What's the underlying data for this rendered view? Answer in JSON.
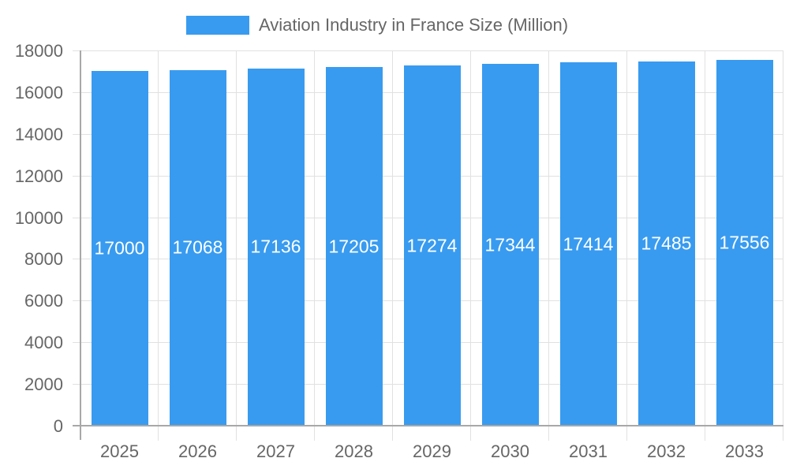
{
  "chart_data": {
    "type": "bar",
    "title": "",
    "legend": [
      {
        "label": "Aviation Industry in France Size (Million)",
        "color": "#389BF0"
      }
    ],
    "legend_position": "top",
    "categories": [
      "2025",
      "2026",
      "2027",
      "2028",
      "2029",
      "2030",
      "2031",
      "2032",
      "2033"
    ],
    "series": [
      {
        "name": "Aviation Industry in France Size (Million)",
        "values": [
          17000,
          17068,
          17136,
          17205,
          17274,
          17344,
          17414,
          17485,
          17556
        ],
        "color": "#389BF0"
      }
    ],
    "xlabel": "",
    "ylabel": "",
    "ylim": [
      0,
      18000
    ],
    "yticks": [
      0,
      2000,
      4000,
      6000,
      8000,
      10000,
      12000,
      14000,
      16000,
      18000
    ],
    "grid": true,
    "data_labels": true
  },
  "legend": {
    "label": "Aviation Industry in France Size (Million)",
    "color": "#389BF0"
  }
}
